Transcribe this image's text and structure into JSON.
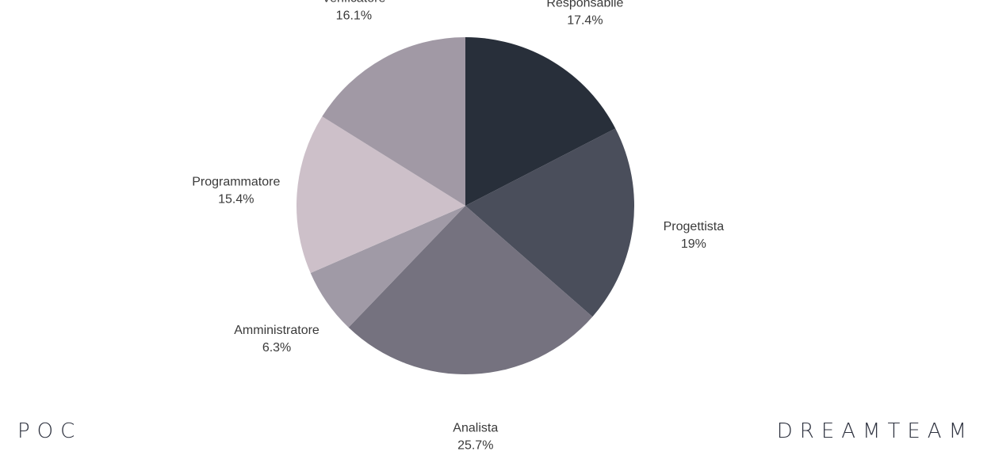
{
  "footer": {
    "left_text": "POC",
    "right_text": "DREAMTEAM"
  },
  "chart_data": {
    "type": "pie",
    "categories": [
      "Responsabile",
      "Progettista",
      "Analista",
      "Amministratore",
      "Programmatore",
      "Verificatore"
    ],
    "values": [
      17.4,
      19,
      25.7,
      6.3,
      15.4,
      16.1
    ],
    "value_labels": [
      "17.4%",
      "19%",
      "25.7%",
      "6.3%",
      "15.4%",
      "16.1%"
    ],
    "colors": [
      "#282f3a",
      "#4a4e5b",
      "#75727f",
      "#a09aa6",
      "#cdc0c9",
      "#a199a5"
    ],
    "legend": "none",
    "start": "top",
    "direction": "clockwise"
  }
}
